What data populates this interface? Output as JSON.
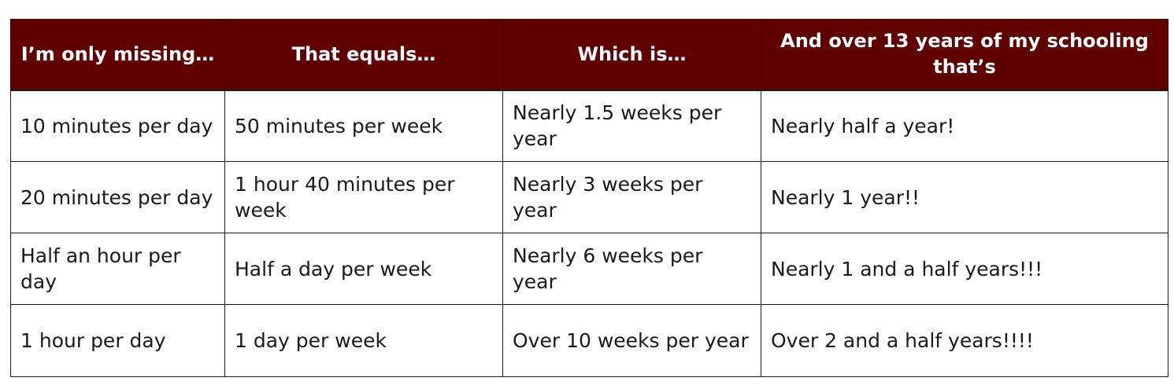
{
  "table": {
    "headers": [
      "I’m only missing…",
      "That equals…",
      "Which is…",
      "And over 13 years of my schooling that’s"
    ],
    "rows": [
      [
        "10 minutes per day",
        "50 minutes per week",
        "Nearly 1.5 weeks per year",
        "Nearly half a year!"
      ],
      [
        "20 minutes per day",
        "1 hour 40 minutes per week",
        "Nearly 3 weeks per year",
        "Nearly 1 year!!"
      ],
      [
        "Half an hour per day",
        "Half a day per week",
        "Nearly 6 weeks per year",
        "Nearly 1 and a half years!!!"
      ],
      [
        "1 hour per day",
        "1 day per week",
        "Over 10 weeks per year",
        "Over 2 and a half years!!!!"
      ]
    ]
  },
  "colors": {
    "header_background": "#600000",
    "header_text": "#ffffff",
    "body_text": "#1a1a1a",
    "border": "#1a1a1a"
  }
}
